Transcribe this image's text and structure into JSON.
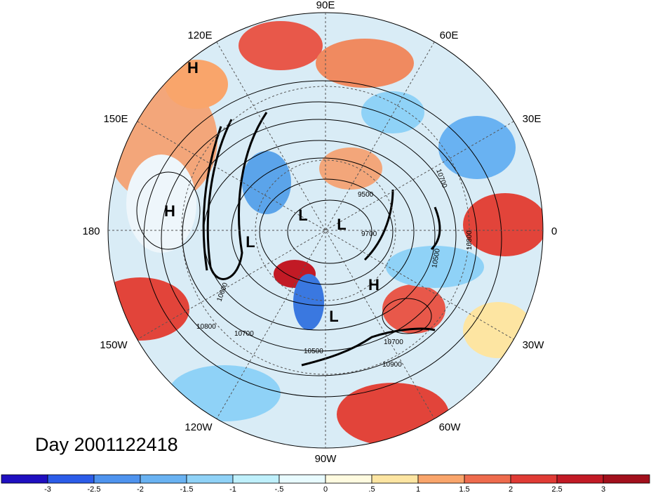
{
  "map": {
    "projection": "polar stereographic (north pole)",
    "longitude_labels": [
      "90E",
      "60E",
      "30E",
      "0",
      "30W",
      "60W",
      "90W",
      "120W",
      "150W",
      "180",
      "150E",
      "120E"
    ],
    "pressure_centers": [
      "H",
      "H",
      "H",
      "L",
      "L",
      "L",
      "L"
    ],
    "contour_labels": [
      "10700",
      "9500",
      "9700",
      "10500",
      "10800",
      "10600",
      "10800",
      "10700",
      "10700",
      "10500",
      "10900"
    ]
  },
  "title": "Day 2001122418",
  "colorbar": {
    "labels": [
      "-3",
      "-2.5",
      "-2",
      "-1.5",
      "-1",
      "-.5",
      "0",
      ".5",
      "1",
      "1.5",
      "2",
      "2.5",
      "3"
    ],
    "colors": [
      "#1f0fc0",
      "#2b5ce8",
      "#4e93ee",
      "#69b2f2",
      "#8fd2f7",
      "#bff0fc",
      "#e8fbff",
      "#fffbe0",
      "#fde5a2",
      "#f9a56b",
      "#ee6b4d",
      "#e03b35",
      "#c21a25",
      "#a2101c"
    ]
  }
}
